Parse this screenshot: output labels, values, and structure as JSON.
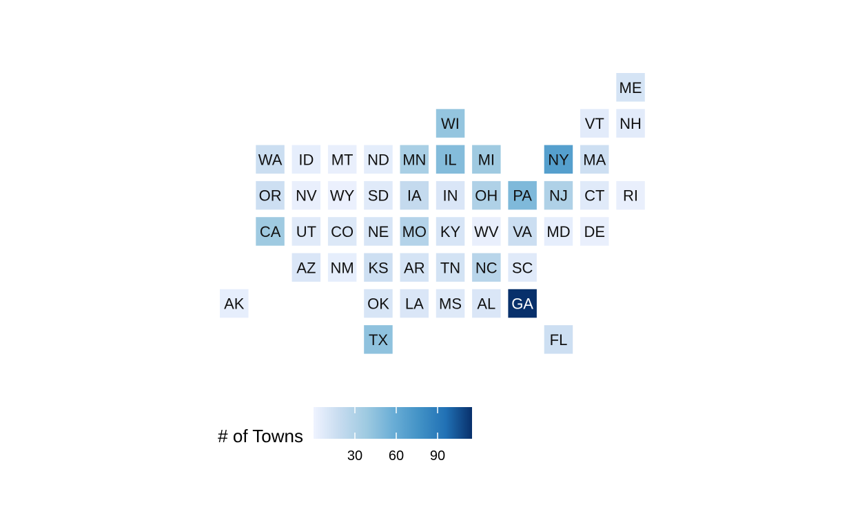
{
  "chart_data": {
    "type": "heatmap",
    "title": "",
    "legend": {
      "title": "# of Towns",
      "position": "bottom-left",
      "min": 0,
      "max": 115,
      "ticks": [
        30,
        60,
        90
      ],
      "colors": [
        "#eff3ff",
        "#c6dbef",
        "#9ecae1",
        "#6baed6",
        "#4292c6",
        "#2171b5",
        "#08306b"
      ]
    },
    "tiles": [
      {
        "state": "ME",
        "col": 11,
        "row": 0,
        "value": 12
      },
      {
        "state": "WI",
        "col": 6,
        "row": 1,
        "value": 42
      },
      {
        "state": "VT",
        "col": 10,
        "row": 1,
        "value": 6
      },
      {
        "state": "NH",
        "col": 11,
        "row": 1,
        "value": 6
      },
      {
        "state": "WA",
        "col": 1,
        "row": 2,
        "value": 17
      },
      {
        "state": "ID",
        "col": 2,
        "row": 2,
        "value": 4
      },
      {
        "state": "MT",
        "col": 3,
        "row": 2,
        "value": 3
      },
      {
        "state": "ND",
        "col": 4,
        "row": 2,
        "value": 5
      },
      {
        "state": "MN",
        "col": 5,
        "row": 2,
        "value": 33
      },
      {
        "state": "IL",
        "col": 6,
        "row": 2,
        "value": 48
      },
      {
        "state": "MI",
        "col": 7,
        "row": 2,
        "value": 38
      },
      {
        "state": "NY",
        "col": 9,
        "row": 2,
        "value": 68
      },
      {
        "state": "MA",
        "col": 10,
        "row": 2,
        "value": 16
      },
      {
        "state": "OR",
        "col": 1,
        "row": 3,
        "value": 16
      },
      {
        "state": "NV",
        "col": 2,
        "row": 3,
        "value": 3
      },
      {
        "state": "WY",
        "col": 3,
        "row": 3,
        "value": 2
      },
      {
        "state": "SD",
        "col": 4,
        "row": 3,
        "value": 7
      },
      {
        "state": "IA",
        "col": 5,
        "row": 3,
        "value": 20
      },
      {
        "state": "IN",
        "col": 6,
        "row": 3,
        "value": 10
      },
      {
        "state": "OH",
        "col": 7,
        "row": 3,
        "value": 30
      },
      {
        "state": "PA",
        "col": 8,
        "row": 3,
        "value": 50
      },
      {
        "state": "NJ",
        "col": 9,
        "row": 3,
        "value": 30
      },
      {
        "state": "CT",
        "col": 10,
        "row": 3,
        "value": 7
      },
      {
        "state": "RI",
        "col": 11,
        "row": 3,
        "value": 3
      },
      {
        "state": "CA",
        "col": 1,
        "row": 4,
        "value": 38
      },
      {
        "state": "UT",
        "col": 2,
        "row": 4,
        "value": 7
      },
      {
        "state": "CO",
        "col": 3,
        "row": 4,
        "value": 9
      },
      {
        "state": "NE",
        "col": 4,
        "row": 4,
        "value": 11
      },
      {
        "state": "MO",
        "col": 5,
        "row": 4,
        "value": 28
      },
      {
        "state": "KY",
        "col": 6,
        "row": 4,
        "value": 11
      },
      {
        "state": "WV",
        "col": 7,
        "row": 4,
        "value": 3
      },
      {
        "state": "VA",
        "col": 8,
        "row": 4,
        "value": 17
      },
      {
        "state": "MD",
        "col": 9,
        "row": 4,
        "value": 4
      },
      {
        "state": "DE",
        "col": 10,
        "row": 4,
        "value": 3
      },
      {
        "state": "AZ",
        "col": 2,
        "row": 5,
        "value": 10
      },
      {
        "state": "NM",
        "col": 3,
        "row": 5,
        "value": 4
      },
      {
        "state": "KS",
        "col": 4,
        "row": 5,
        "value": 16
      },
      {
        "state": "AR",
        "col": 5,
        "row": 5,
        "value": 12
      },
      {
        "state": "TN",
        "col": 6,
        "row": 5,
        "value": 13
      },
      {
        "state": "NC",
        "col": 7,
        "row": 5,
        "value": 26
      },
      {
        "state": "SC",
        "col": 8,
        "row": 5,
        "value": 7
      },
      {
        "state": "AK",
        "col": 0,
        "row": 6,
        "value": 4
      },
      {
        "state": "OK",
        "col": 4,
        "row": 6,
        "value": 11
      },
      {
        "state": "LA",
        "col": 5,
        "row": 6,
        "value": 10
      },
      {
        "state": "MS",
        "col": 6,
        "row": 6,
        "value": 8
      },
      {
        "state": "AL",
        "col": 7,
        "row": 6,
        "value": 10
      },
      {
        "state": "GA",
        "col": 8,
        "row": 6,
        "value": 115
      },
      {
        "state": "TX",
        "col": 4,
        "row": 7,
        "value": 44
      },
      {
        "state": "FL",
        "col": 9,
        "row": 7,
        "value": 16
      }
    ]
  }
}
